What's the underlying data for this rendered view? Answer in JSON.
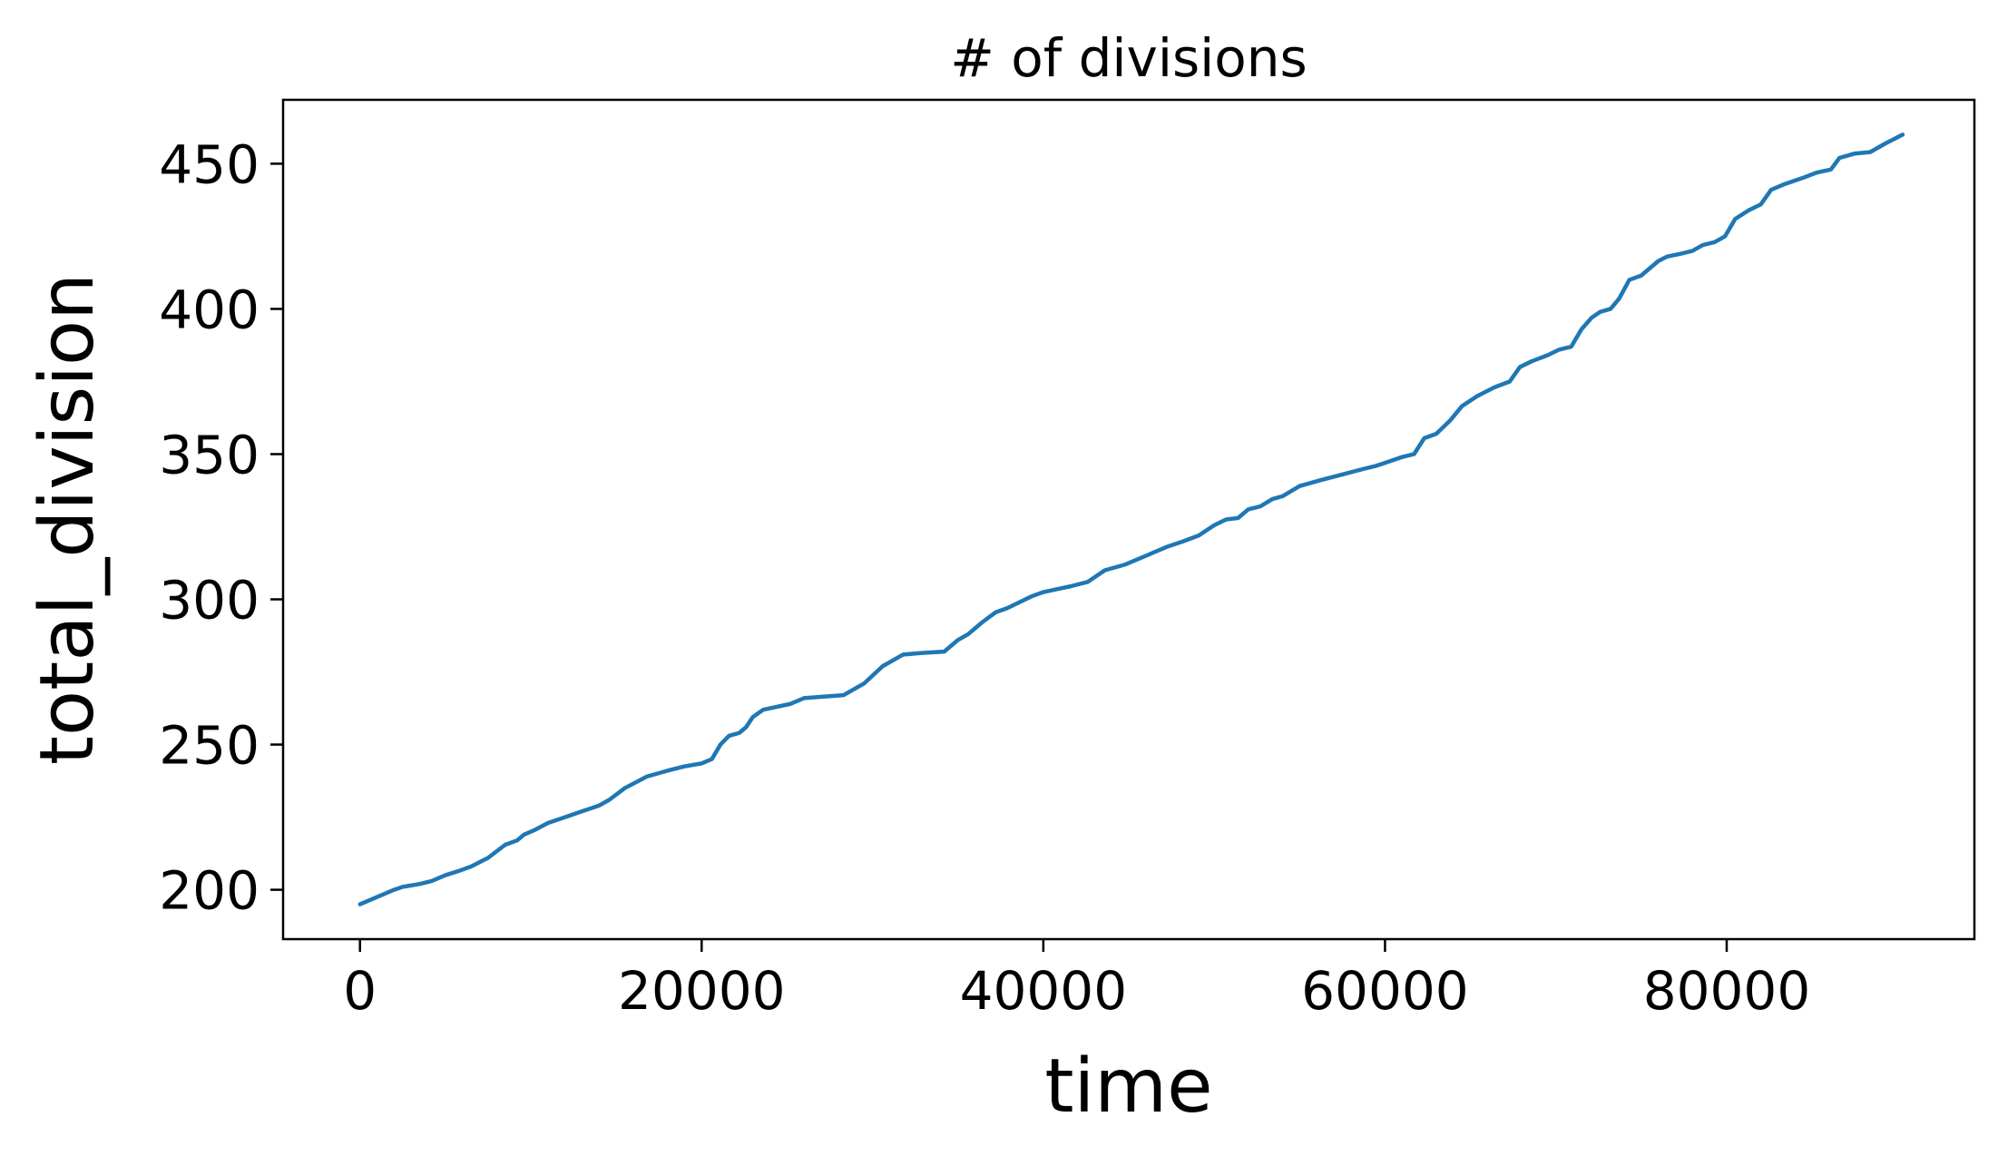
{
  "chart_data": {
    "type": "line",
    "title": "# of divisions",
    "xlabel": "time",
    "ylabel": "total_division",
    "xlim": [
      -4500,
      94500
    ],
    "ylim": [
      183,
      472
    ],
    "x_ticks": [
      0,
      20000,
      40000,
      60000,
      80000
    ],
    "y_ticks": [
      200,
      250,
      300,
      350,
      400,
      450
    ],
    "x_tick_labels": [
      "0",
      "20000",
      "40000",
      "60000",
      "80000"
    ],
    "y_tick_labels": [
      "200",
      "250",
      "300",
      "350",
      "400",
      "450"
    ],
    "grid": false,
    "legend": "none",
    "series": [
      {
        "color": "#1f77b4",
        "x": [
          0,
          1000,
          2000,
          2500,
          3500,
          4200,
          5000,
          5800,
          6500,
          7500,
          8500,
          9200,
          9600,
          10200,
          11000,
          12000,
          13000,
          14000,
          14600,
          15500,
          16800,
          18000,
          19000,
          20000,
          20600,
          21100,
          21600,
          22200,
          22600,
          23000,
          23600,
          24400,
          25200,
          26000,
          28300,
          29500,
          30600,
          31800,
          32800,
          34200,
          35000,
          35600,
          36400,
          37200,
          37900,
          38600,
          39300,
          40000,
          40800,
          41600,
          42600,
          43600,
          44800,
          46000,
          47200,
          48200,
          49100,
          50000,
          50700,
          51400,
          52000,
          52700,
          53400,
          54000,
          55000,
          56200,
          57500,
          58800,
          59500,
          60000,
          61000,
          61700,
          62300,
          63000,
          63800,
          64500,
          65400,
          66400,
          67300,
          67900,
          68600,
          69500,
          70200,
          70900,
          71500,
          72100,
          72600,
          73200,
          73700,
          74300,
          75000,
          75500,
          76000,
          76500,
          77300,
          78000,
          78600,
          79300,
          79900,
          80500,
          81300,
          82000,
          82600,
          83400,
          84400,
          85300,
          86100,
          86600,
          87500,
          88400,
          89300,
          90300
        ],
        "y": [
          195,
          197.5,
          200,
          201,
          202,
          203,
          205,
          206.5,
          208,
          211,
          215.5,
          217,
          219,
          220.5,
          223,
          225,
          227,
          229,
          231,
          235,
          239,
          241,
          242.5,
          243.5,
          245,
          250,
          253,
          254,
          256,
          259.5,
          262,
          263,
          264,
          266,
          267,
          271,
          277,
          281,
          281.5,
          282,
          286,
          288,
          292,
          295.5,
          297,
          299,
          301,
          302.5,
          303.5,
          304.5,
          306,
          310,
          312,
          315,
          318,
          320,
          322,
          325.5,
          327.5,
          328,
          331,
          332,
          334.5,
          335.5,
          339,
          341,
          343,
          345,
          346,
          347,
          349,
          350,
          355.5,
          357,
          361.5,
          366.5,
          370,
          373,
          375,
          380,
          382,
          384,
          386,
          387,
          393,
          397,
          399,
          400,
          403.5,
          410,
          411.5,
          414,
          416.5,
          418,
          419,
          420,
          422,
          423,
          425,
          431,
          434,
          436,
          441,
          443,
          445,
          447,
          448,
          452,
          453.5,
          454,
          457,
          460
        ]
      }
    ]
  }
}
